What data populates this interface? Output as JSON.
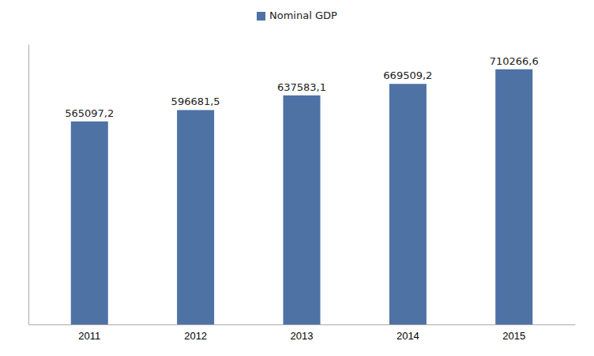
{
  "chart_data": {
    "type": "bar",
    "categories": [
      "2011",
      "2012",
      "2013",
      "2014",
      "2015"
    ],
    "series": [
      {
        "name": "Nominal GDP",
        "color": "#4E72A4",
        "values": [
          565097.2,
          596681.5,
          637583.1,
          669509.2,
          710266.6
        ],
        "value_labels": [
          "565097,2",
          "596681,5",
          "637583,1",
          "669509,2",
          "710266,6"
        ]
      }
    ],
    "ylim": [
      0,
      780000
    ],
    "data_labels": true,
    "tick_labels": "x",
    "legend": "top",
    "grid": false
  }
}
